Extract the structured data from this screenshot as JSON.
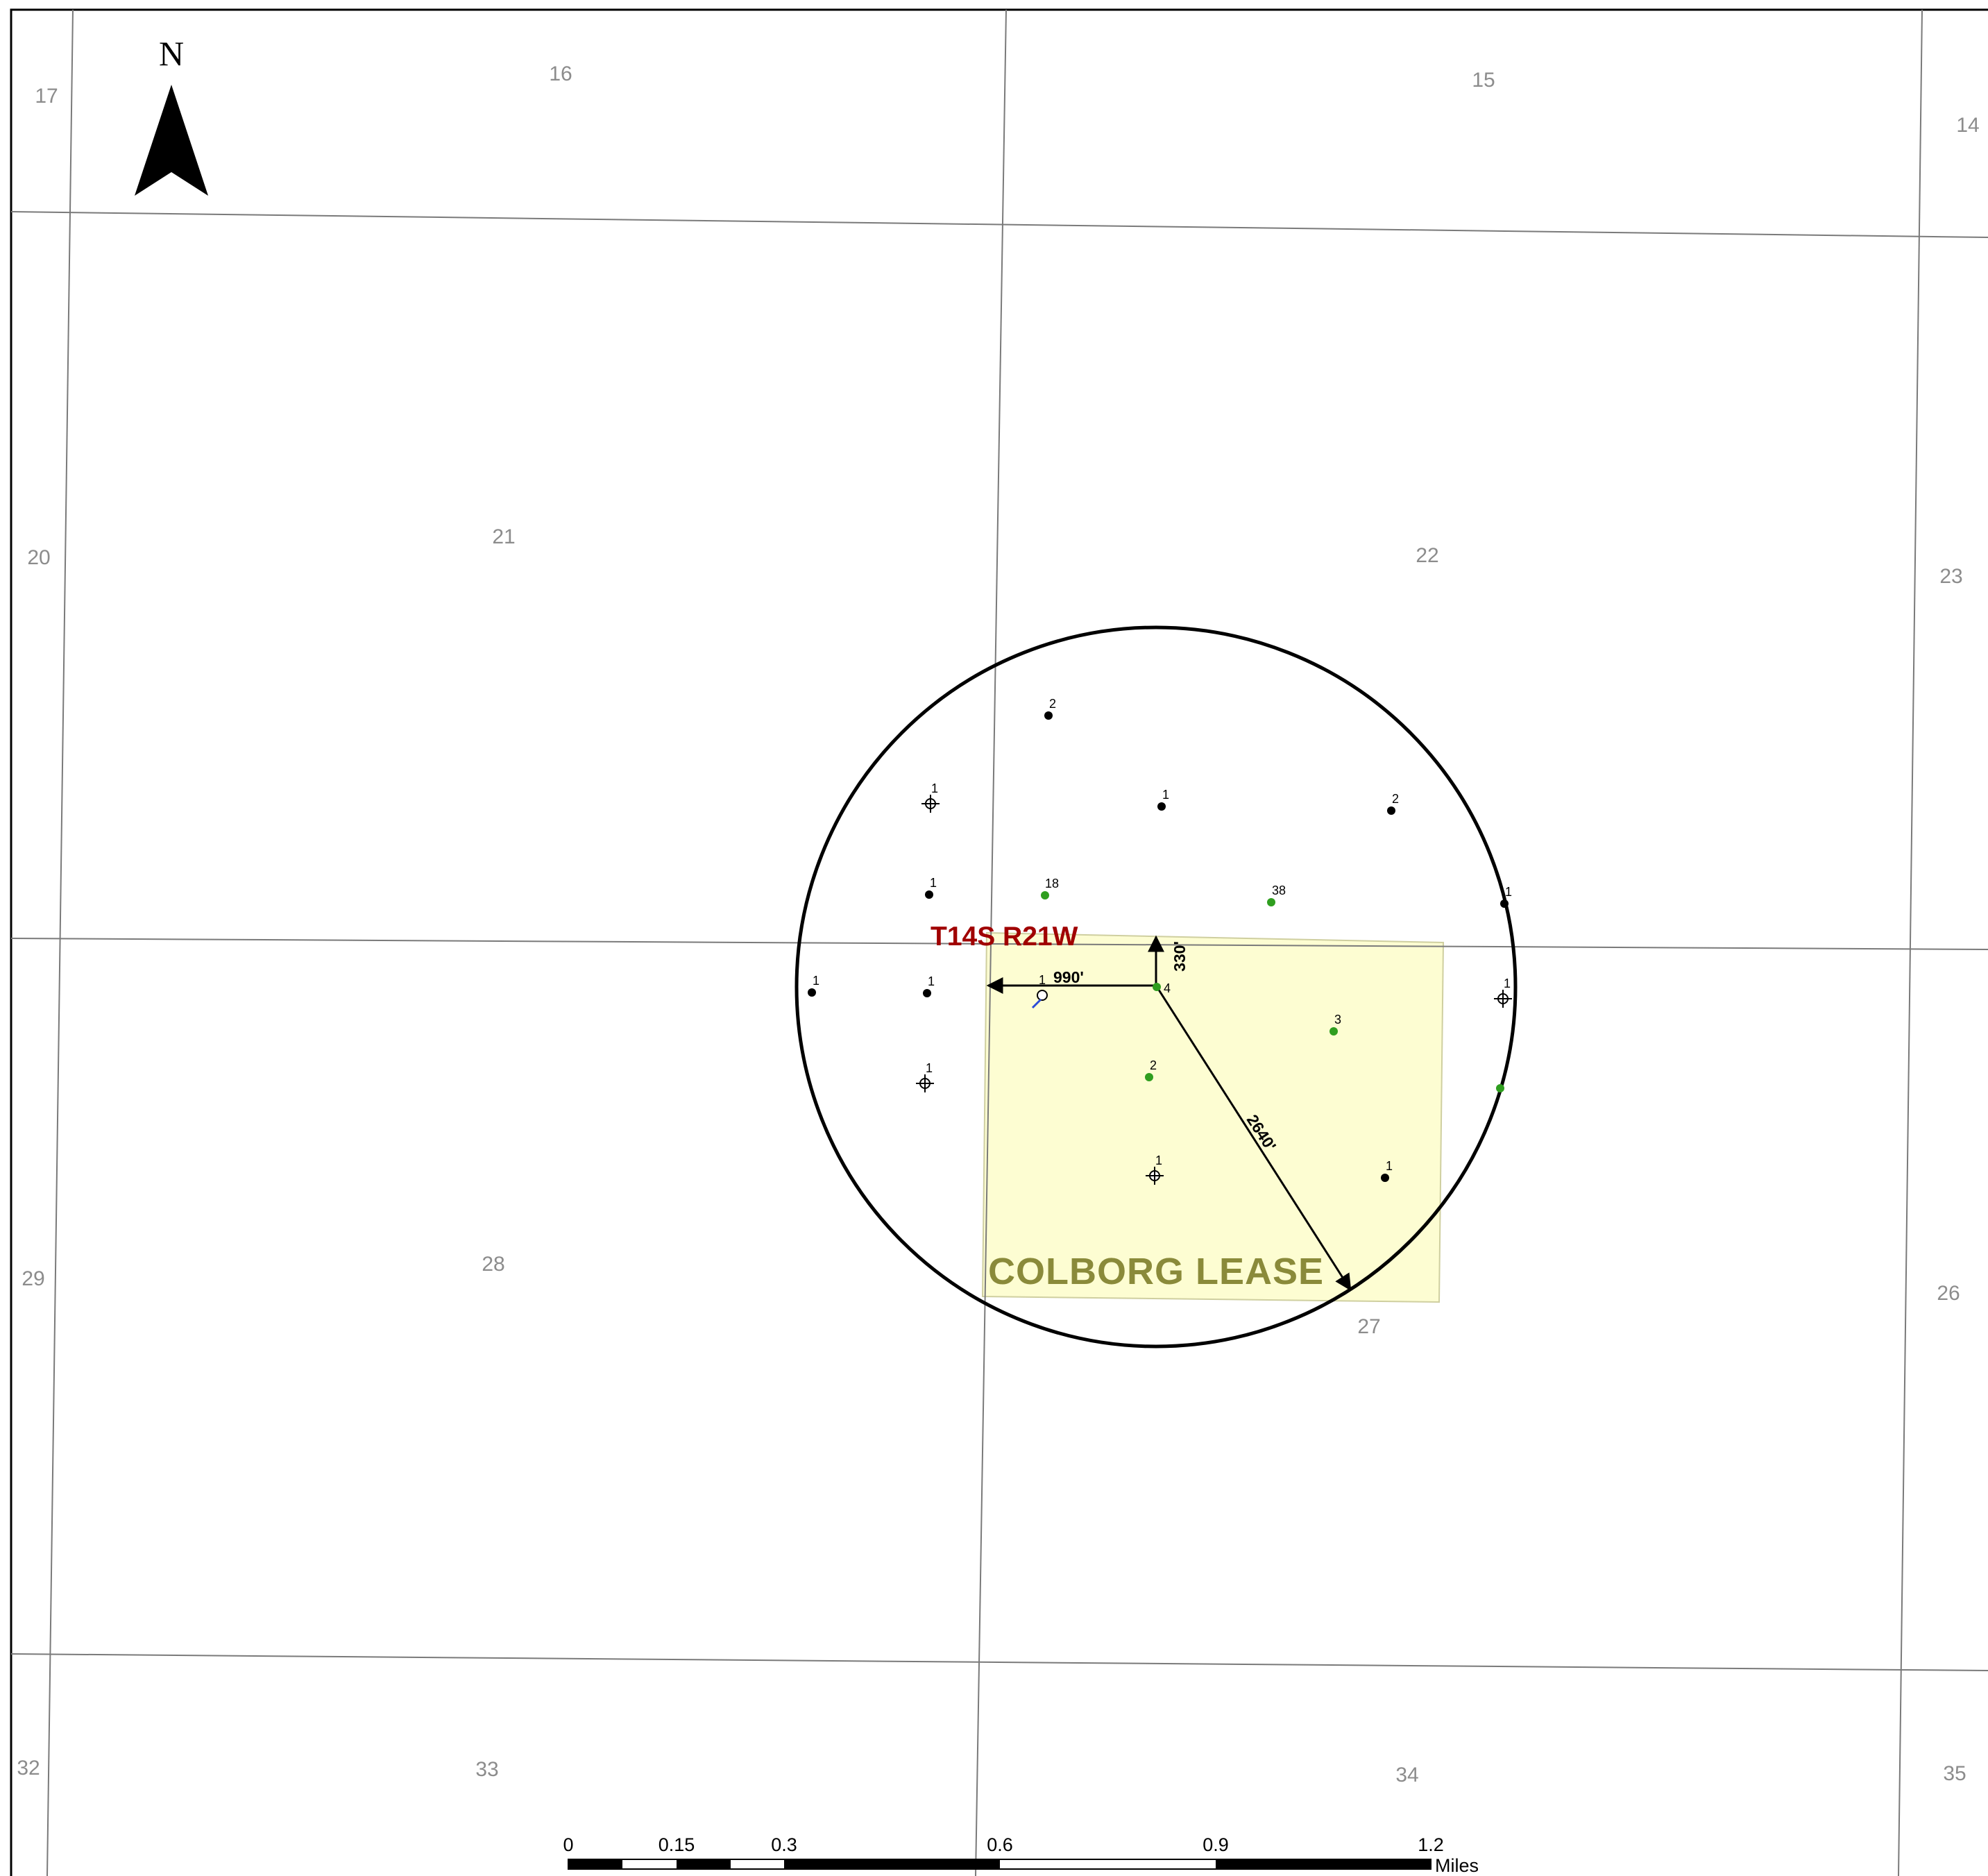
{
  "north_arrow": {
    "label": "N"
  },
  "township": {
    "label": "T14S R21W"
  },
  "lease": {
    "label": "COLBORG LEASE"
  },
  "dimensions": {
    "north": "330'",
    "west": "990'",
    "radius": "2640'"
  },
  "sections": [
    {
      "id": "s17",
      "label": "17"
    },
    {
      "id": "s16",
      "label": "16"
    },
    {
      "id": "s15",
      "label": "15"
    },
    {
      "id": "s14",
      "label": "14"
    },
    {
      "id": "s20",
      "label": "20"
    },
    {
      "id": "s21",
      "label": "21"
    },
    {
      "id": "s22",
      "label": "22"
    },
    {
      "id": "s23",
      "label": "23"
    },
    {
      "id": "s29",
      "label": "29"
    },
    {
      "id": "s28",
      "label": "28"
    },
    {
      "id": "s27",
      "label": "27"
    },
    {
      "id": "s26",
      "label": "26"
    },
    {
      "id": "s32",
      "label": "32"
    },
    {
      "id": "s33",
      "label": "33"
    },
    {
      "id": "s34",
      "label": "34"
    },
    {
      "id": "s35",
      "label": "35"
    }
  ],
  "wells": [
    {
      "id": "w1",
      "label": "2",
      "symbol": "oil-well"
    },
    {
      "id": "w2",
      "label": "1",
      "symbol": "dry-hole"
    },
    {
      "id": "w3",
      "label": "1",
      "symbol": "oil-well"
    },
    {
      "id": "w4",
      "label": "2",
      "symbol": "oil-well"
    },
    {
      "id": "w5",
      "label": "1",
      "symbol": "oil-well"
    },
    {
      "id": "w6",
      "label": "18",
      "symbol": "gas-well"
    },
    {
      "id": "w7",
      "label": "38",
      "symbol": "gas-well"
    },
    {
      "id": "w8",
      "label": "1",
      "symbol": "oil-well"
    },
    {
      "id": "w9",
      "label": "1",
      "symbol": "oil-well"
    },
    {
      "id": "w10",
      "label": "1",
      "symbol": "oil-well"
    },
    {
      "id": "w11",
      "label": "1",
      "symbol": "abandoned-location"
    },
    {
      "id": "w12",
      "label": "4",
      "symbol": "gas-well"
    },
    {
      "id": "w13",
      "label": "1",
      "symbol": "dry-hole"
    },
    {
      "id": "w14",
      "label": "3",
      "symbol": "gas-well"
    },
    {
      "id": "w15",
      "label": "1",
      "symbol": "dry-hole"
    },
    {
      "id": "w16",
      "label": "2",
      "symbol": "gas-well"
    },
    {
      "id": "w17",
      "label": "",
      "symbol": "gas-well"
    },
    {
      "id": "w18",
      "label": "1",
      "symbol": "dry-hole"
    },
    {
      "id": "w19",
      "label": "1",
      "symbol": "oil-well"
    }
  ],
  "scale_bar": {
    "unit": "Miles",
    "ticks": [
      "0",
      "0.15",
      "0.3",
      "0.6",
      "0.9",
      "1.2"
    ]
  },
  "colors": {
    "lease_fill": "#fdfdd2",
    "gas_well": "#2f9e1f",
    "oil_well": "#000000",
    "township_label": "#a00000",
    "lease_label": "#8a8a3a",
    "section_line": "#7a7a7a"
  }
}
